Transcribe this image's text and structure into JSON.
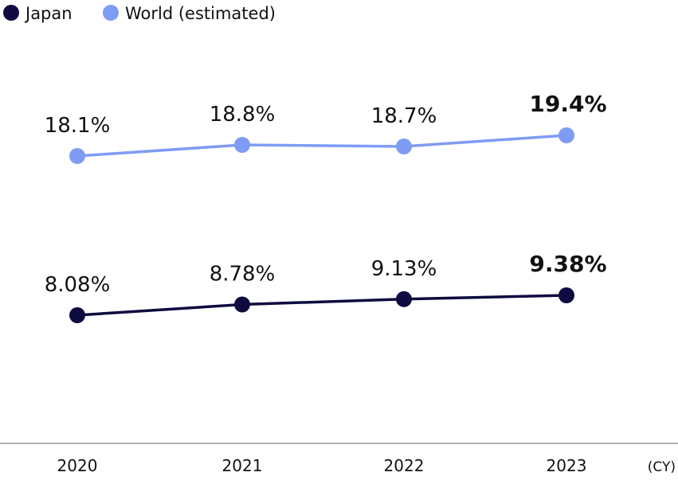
{
  "chart_data": {
    "type": "line",
    "categories": [
      "2020",
      "2021",
      "2022",
      "2023"
    ],
    "x_unit": "(CY)",
    "series": [
      {
        "name": "Japan",
        "color": "#0d0b3f",
        "values": [
          8.08,
          8.78,
          9.13,
          9.38
        ],
        "labels": [
          "8.08%",
          "8.78%",
          "9.13%",
          "9.38%"
        ]
      },
      {
        "name": "World (estimated)",
        "color": "#7f9cf5",
        "values": [
          18.1,
          18.8,
          18.7,
          19.4
        ],
        "labels": [
          "18.1%",
          "18.8%",
          "18.7%",
          "19.4%"
        ]
      }
    ],
    "highlight_last_label": true,
    "axes_visible": false,
    "grid": false,
    "legend_position": "top-left",
    "axis_line_color": "#999999"
  }
}
